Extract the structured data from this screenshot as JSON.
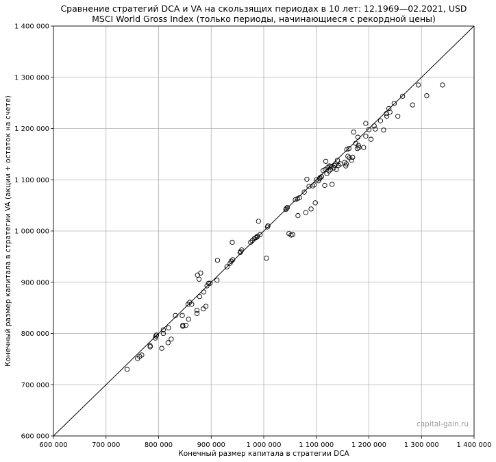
{
  "chart_data": {
    "type": "scatter",
    "title": "Сравнение стратегий DCA и VA на скользящих периодах в 10 лет: 12.1969—02.2021, USD",
    "subtitle": "MSCI World Gross Index (только периоды, начинающиеся с рекордной цены)",
    "xlabel": "Конечный размер капитала в стратегии DCA",
    "ylabel": "Конечный размер капитала в стратегии VA (акции + остаток на счете)",
    "xlim": [
      600000,
      1400000
    ],
    "ylim": [
      600000,
      1400000
    ],
    "x_ticks": [
      600000,
      700000,
      800000,
      900000,
      1000000,
      1100000,
      1200000,
      1300000,
      1400000
    ],
    "y_ticks": [
      600000,
      700000,
      800000,
      900000,
      1000000,
      1100000,
      1200000,
      1300000,
      1400000
    ],
    "x_tick_labels": [
      "600 000",
      "700 000",
      "800 000",
      "900 000",
      "1 000 000",
      "1 100 000",
      "1 200 000",
      "1 300 000",
      "1 400 000"
    ],
    "y_tick_labels": [
      "600 000",
      "700 000",
      "800 000",
      "900 000",
      "1 000 000",
      "1 100 000",
      "1 200 000",
      "1 300 000",
      "1 400 000"
    ],
    "grid": true,
    "reference_line": "y = x",
    "marker": "open-circle",
    "watermark": "capital-gain.ru",
    "x": [
      740000,
      760000,
      764000,
      768000,
      784000,
      784000,
      794000,
      795000,
      796000,
      806000,
      809000,
      809000,
      818000,
      819000,
      824000,
      832000,
      845000,
      846000,
      846000,
      852000,
      856000,
      857000,
      859000,
      863000,
      873000,
      873000,
      874000,
      877000,
      878000,
      880000,
      885000,
      886000,
      890000,
      892000,
      895000,
      898000,
      911000,
      912000,
      930000,
      936000,
      938000,
      940000,
      941000,
      955000,
      956000,
      958000,
      975000,
      978000,
      982000,
      985000,
      987000,
      988000,
      990000,
      993000,
      1005000,
      1007000,
      1008000,
      1042000,
      1043000,
      1045000,
      1048000,
      1052000,
      1055000,
      1060000,
      1064000,
      1065000,
      1068000,
      1077000,
      1080000,
      1082000,
      1086000,
      1090000,
      1093000,
      1096000,
      1098000,
      1100000,
      1104000,
      1106000,
      1107000,
      1110000,
      1113000,
      1116000,
      1117000,
      1118000,
      1120000,
      1122000,
      1124000,
      1125000,
      1127000,
      1128000,
      1130000,
      1133000,
      1135000,
      1137000,
      1138000,
      1140000,
      1142000,
      1146000,
      1154000,
      1156000,
      1157000,
      1158000,
      1160000,
      1162000,
      1163000,
      1167000,
      1169000,
      1171000,
      1175000,
      1178000,
      1179000,
      1180000,
      1181000,
      1190000,
      1194000,
      1194000,
      1200000,
      1204000,
      1210000,
      1212000,
      1222000,
      1228000,
      1233000,
      1234000,
      1238000,
      1240000,
      1248000,
      1255000,
      1264000,
      1283000,
      1294000,
      1310000,
      1340000
    ],
    "y": [
      730000,
      751000,
      755000,
      758000,
      774000,
      776000,
      791000,
      795000,
      797000,
      771000,
      800000,
      807000,
      782000,
      811000,
      789000,
      835000,
      835000,
      814000,
      816000,
      816000,
      857000,
      828000,
      861000,
      857000,
      839000,
      845000,
      914000,
      906000,
      872000,
      918000,
      848000,
      881000,
      853000,
      893000,
      898000,
      898000,
      904000,
      943000,
      930000,
      937000,
      941000,
      978000,
      944000,
      958000,
      960000,
      963000,
      978000,
      981000,
      985000,
      987000,
      988000,
      990000,
      1019000,
      993000,
      947000,
      1008000,
      1010000,
      1042000,
      1044000,
      1046000,
      995000,
      992000,
      993000,
      1061000,
      1063000,
      1030000,
      1065000,
      1076000,
      1036000,
      1101000,
      1087000,
      1043000,
      1088000,
      1090000,
      1055000,
      1100000,
      1098000,
      1102000,
      1104000,
      1106000,
      1118000,
      1089000,
      1120000,
      1136000,
      1112000,
      1124000,
      1117000,
      1127000,
      1120000,
      1126000,
      1091000,
      1123000,
      1128000,
      1131000,
      1120000,
      1138000,
      1128000,
      1131000,
      1134000,
      1127000,
      1131000,
      1159000,
      1146000,
      1161000,
      1143000,
      1138000,
      1144000,
      1193000,
      1171000,
      1161000,
      1183000,
      1167000,
      1163000,
      1163000,
      1185000,
      1210000,
      1198000,
      1179000,
      1205000,
      1199000,
      1215000,
      1197000,
      1229000,
      1224000,
      1239000,
      1232000,
      1249000,
      1224000,
      1263000,
      1246000,
      1285000,
      1264000,
      1285000
    ]
  }
}
